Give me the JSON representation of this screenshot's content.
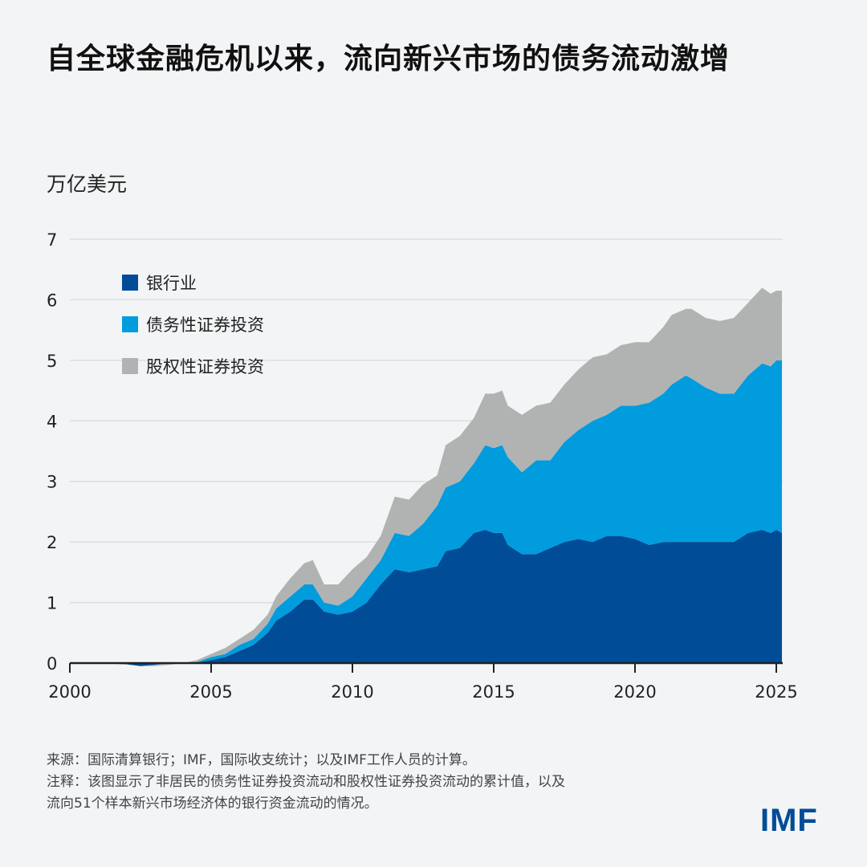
{
  "title": "自全球金融危机以来，流向新兴市场的债务流动激增",
  "notes": {
    "source": "来源：国际清算银行；IMF，国际收支统计；以及IMF工作人员的计算。",
    "note_line1": "注释：该图显示了非居民的债务性证券投资流动和股权性证券投资流动的累计值，以及",
    "note_line2": "流向51个样本新兴市场经济体的银行资金流动的情况。"
  },
  "logo": "IMF",
  "colors": {
    "bank": "#004c97",
    "debt": "#009cde",
    "equity": "#b1b3b3",
    "background": "#f3f4f6"
  },
  "chart_data": {
    "type": "area",
    "stacked": true,
    "ylabel": "万亿美元",
    "ylim": [
      0,
      7
    ],
    "xlim": [
      2000,
      2025.2
    ],
    "yticks": [
      "0",
      "1",
      "2",
      "3",
      "4",
      "5",
      "6",
      "7"
    ],
    "xticks": [
      "2000",
      "2005",
      "2010",
      "2015",
      "2020",
      "2025"
    ],
    "grid": true,
    "legend_position": "top-left",
    "x": [
      2000,
      2001,
      2002,
      2002.5,
      2003,
      2003.5,
      2004,
      2004.5,
      2005,
      2005.5,
      2006,
      2006.5,
      2007,
      2007.3,
      2007.8,
      2008.3,
      2008.6,
      2009,
      2009.5,
      2010,
      2010.5,
      2011,
      2011.5,
      2012,
      2012.5,
      2013,
      2013.3,
      2013.8,
      2014.3,
      2014.7,
      2015,
      2015.3,
      2015.5,
      2016,
      2016.5,
      2017,
      2017.5,
      2018,
      2018.5,
      2019,
      2019.5,
      2020,
      2020.5,
      2021,
      2021.3,
      2021.8,
      2022,
      2022.5,
      2023,
      2023.5,
      2024,
      2024.5,
      2024.8,
      2025,
      2025.2
    ],
    "series": [
      {
        "name": "银行业",
        "color": "#004c97",
        "values": [
          0,
          0,
          -0.02,
          -0.05,
          -0.03,
          0,
          0,
          0.01,
          0.05,
          0.1,
          0.2,
          0.3,
          0.5,
          0.7,
          0.85,
          1.05,
          1.05,
          0.85,
          0.8,
          0.85,
          1.0,
          1.3,
          1.55,
          1.5,
          1.55,
          1.6,
          1.85,
          1.9,
          2.15,
          2.2,
          2.15,
          2.15,
          1.95,
          1.8,
          1.8,
          1.9,
          2.0,
          2.05,
          2.0,
          2.1,
          2.1,
          2.05,
          1.95,
          2.0,
          2.0,
          2.0,
          2.0,
          2.0,
          2.0,
          2.0,
          2.15,
          2.2,
          2.15,
          2.2,
          2.15
        ]
      },
      {
        "name": "债务性证券投资",
        "color": "#009cde",
        "values": [
          0,
          0,
          0,
          0,
          0,
          0,
          0,
          0.01,
          0.05,
          0.05,
          0.1,
          0.1,
          0.15,
          0.2,
          0.25,
          0.25,
          0.25,
          0.15,
          0.15,
          0.25,
          0.4,
          0.4,
          0.6,
          0.6,
          0.75,
          1.0,
          1.05,
          1.1,
          1.15,
          1.4,
          1.4,
          1.45,
          1.45,
          1.35,
          1.55,
          1.45,
          1.65,
          1.8,
          2.0,
          2.0,
          2.15,
          2.2,
          2.35,
          2.45,
          2.6,
          2.75,
          2.7,
          2.55,
          2.45,
          2.45,
          2.6,
          2.75,
          2.75,
          2.8,
          2.85
        ]
      },
      {
        "name": "股权性证券投资",
        "color": "#b1b3b3",
        "values": [
          0,
          0,
          0,
          0,
          -0.02,
          -0.03,
          0,
          0.03,
          0.05,
          0.1,
          0.1,
          0.15,
          0.15,
          0.2,
          0.3,
          0.35,
          0.4,
          0.3,
          0.35,
          0.45,
          0.35,
          0.4,
          0.6,
          0.6,
          0.65,
          0.5,
          0.7,
          0.75,
          0.75,
          0.85,
          0.9,
          0.9,
          0.85,
          0.95,
          0.9,
          0.95,
          0.95,
          1.0,
          1.05,
          1.0,
          1.0,
          1.05,
          1.0,
          1.1,
          1.15,
          1.1,
          1.15,
          1.15,
          1.2,
          1.25,
          1.2,
          1.25,
          1.2,
          1.15,
          1.15
        ]
      }
    ]
  }
}
